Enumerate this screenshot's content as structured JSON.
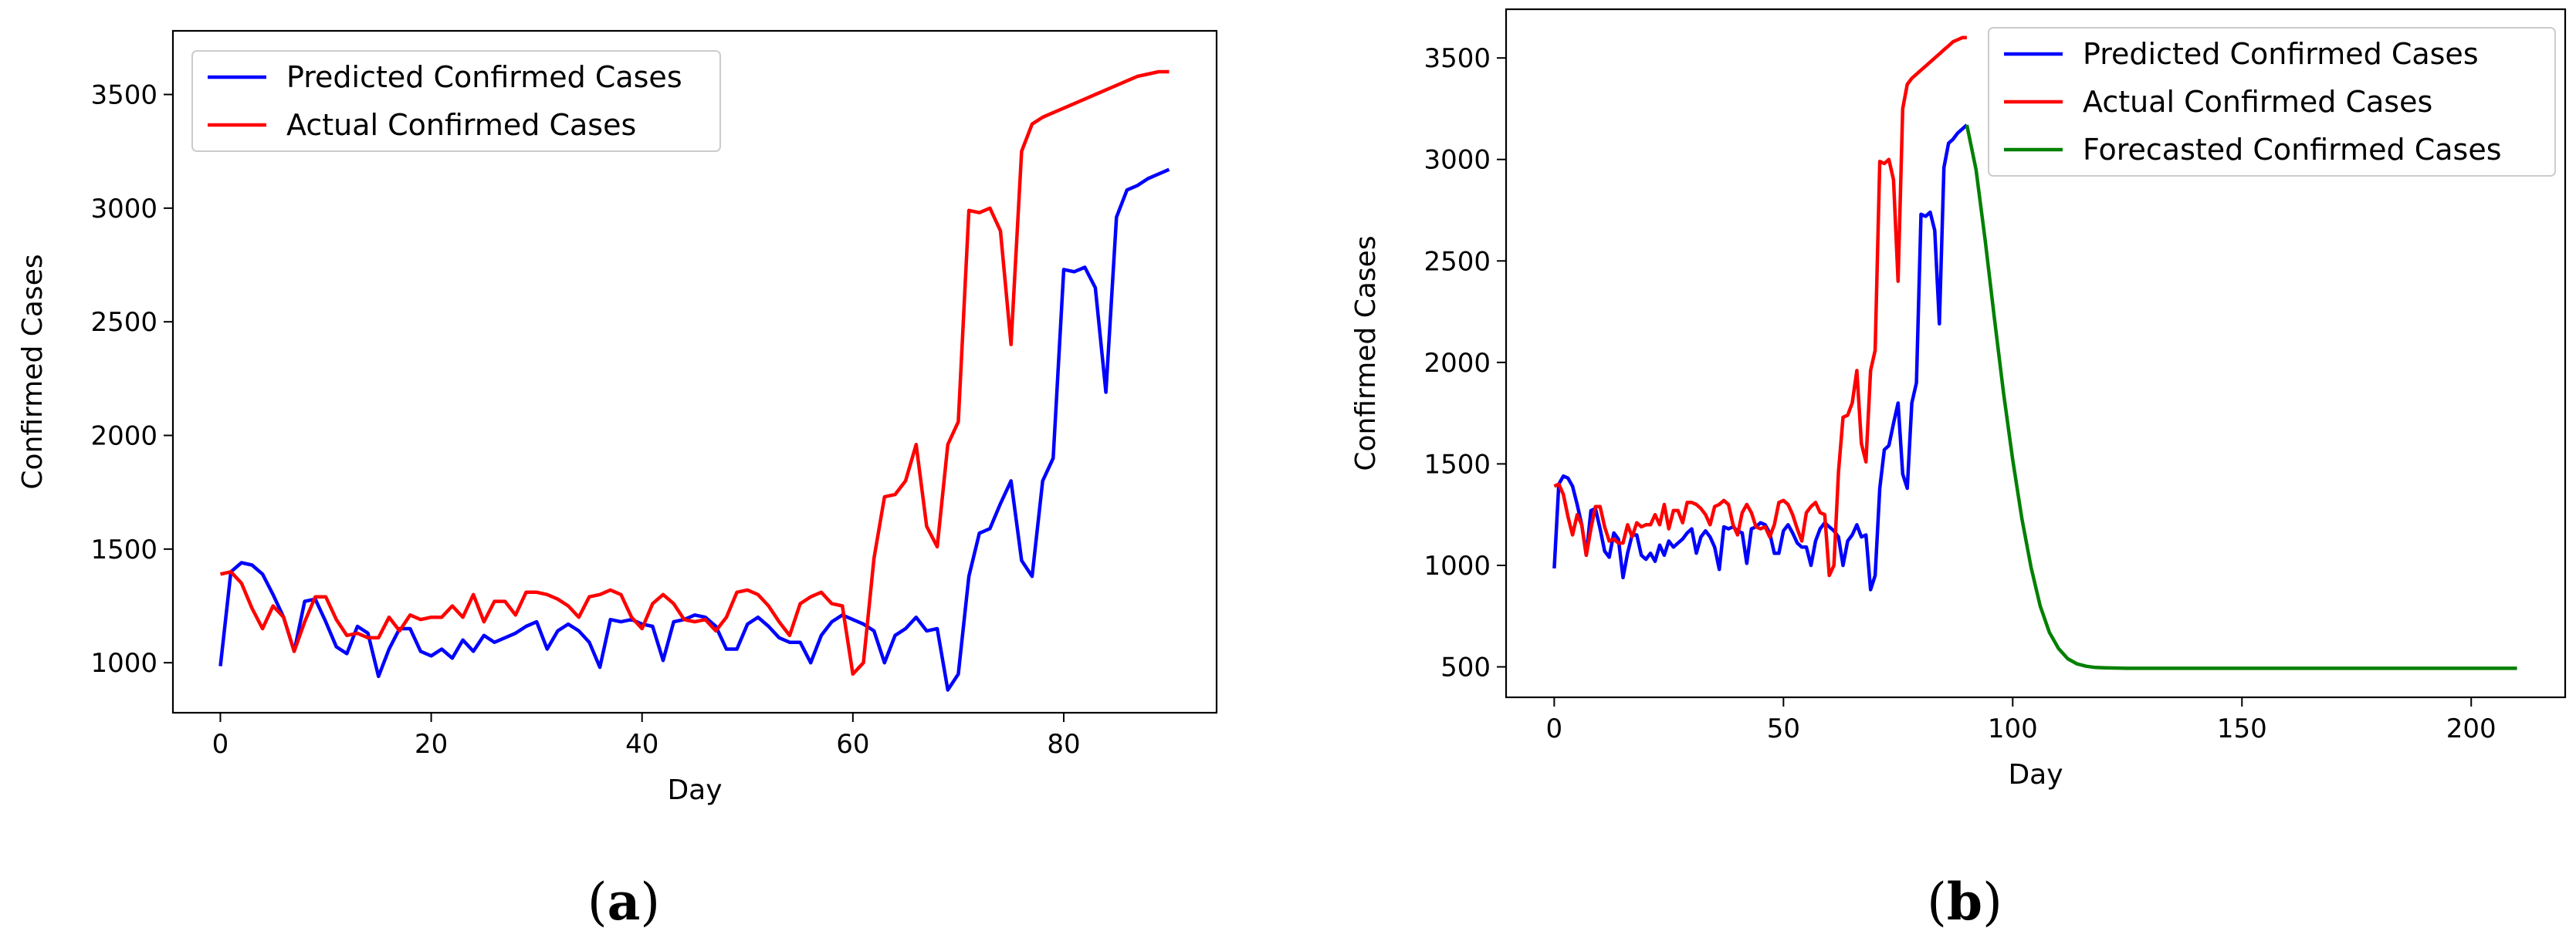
{
  "chart_data": [
    {
      "panel_label": "a",
      "type": "line",
      "xlabel": "Day",
      "ylabel": "Confirmed Cases",
      "xlim": [
        -4.5,
        94.5
      ],
      "ylim": [
        780,
        3780
      ],
      "xticks": [
        0,
        20,
        40,
        60,
        80
      ],
      "yticks": [
        1000,
        1500,
        2000,
        2500,
        3000,
        3500
      ],
      "legend_position": "upper-left",
      "series": [
        {
          "name": "Predicted Confirmed Cases",
          "color": "#0000ff",
          "x": [
            0,
            1,
            2,
            3,
            4,
            5,
            6,
            7,
            8,
            9,
            10,
            11,
            12,
            13,
            14,
            15,
            16,
            17,
            18,
            19,
            20,
            21,
            22,
            23,
            24,
            25,
            26,
            27,
            28,
            29,
            30,
            31,
            32,
            33,
            34,
            35,
            36,
            37,
            38,
            39,
            40,
            41,
            42,
            43,
            44,
            45,
            46,
            47,
            48,
            49,
            50,
            51,
            52,
            53,
            54,
            55,
            56,
            57,
            58,
            59,
            60,
            61,
            62,
            63,
            64,
            65,
            66,
            67,
            68,
            69,
            70,
            71,
            72,
            73,
            74,
            75,
            76,
            77,
            78,
            79,
            80,
            81,
            82,
            83,
            84,
            85,
            86,
            87,
            88,
            89,
            90
          ],
          "y": [
            985,
            1400,
            1440,
            1430,
            1390,
            1300,
            1200,
            1050,
            1270,
            1280,
            1180,
            1070,
            1040,
            1160,
            1130,
            940,
            1060,
            1150,
            1150,
            1050,
            1030,
            1060,
            1020,
            1100,
            1050,
            1120,
            1090,
            1110,
            1130,
            1160,
            1180,
            1060,
            1140,
            1170,
            1140,
            1090,
            980,
            1190,
            1180,
            1190,
            1170,
            1160,
            1010,
            1180,
            1190,
            1210,
            1200,
            1160,
            1060,
            1060,
            1170,
            1200,
            1160,
            1110,
            1090,
            1090,
            1000,
            1120,
            1180,
            1210,
            1190,
            1170,
            1140,
            1000,
            1120,
            1150,
            1200,
            1140,
            1150,
            880,
            950,
            1380,
            1570,
            1590,
            1700,
            1800,
            1450,
            1380,
            1800,
            1900,
            2730,
            2720,
            2740,
            2650,
            2190,
            2960,
            3080,
            3100,
            3130,
            3150,
            3170
          ]
        },
        {
          "name": "Actual Confirmed Cases",
          "color": "#ff0000",
          "x": [
            0,
            1,
            2,
            3,
            4,
            5,
            6,
            7,
            8,
            9,
            10,
            11,
            12,
            13,
            14,
            15,
            16,
            17,
            18,
            19,
            20,
            21,
            22,
            23,
            24,
            25,
            26,
            27,
            28,
            29,
            30,
            31,
            32,
            33,
            34,
            35,
            36,
            37,
            38,
            39,
            40,
            41,
            42,
            43,
            44,
            45,
            46,
            47,
            48,
            49,
            50,
            51,
            52,
            53,
            54,
            55,
            56,
            57,
            58,
            59,
            60,
            61,
            62,
            63,
            64,
            65,
            66,
            67,
            68,
            69,
            70,
            71,
            72,
            73,
            74,
            75,
            76,
            77,
            78,
            79,
            80,
            81,
            82,
            83,
            84,
            85,
            86,
            87,
            88,
            89,
            90
          ],
          "y": [
            1390,
            1400,
            1350,
            1240,
            1150,
            1250,
            1200,
            1050,
            1180,
            1290,
            1290,
            1190,
            1120,
            1130,
            1110,
            1110,
            1200,
            1140,
            1210,
            1190,
            1200,
            1200,
            1250,
            1200,
            1300,
            1180,
            1270,
            1270,
            1210,
            1310,
            1310,
            1300,
            1280,
            1250,
            1200,
            1290,
            1300,
            1320,
            1300,
            1200,
            1150,
            1260,
            1300,
            1260,
            1190,
            1180,
            1190,
            1140,
            1200,
            1310,
            1320,
            1300,
            1250,
            1180,
            1120,
            1260,
            1290,
            1310,
            1260,
            1250,
            950,
            1000,
            1460,
            1730,
            1740,
            1800,
            1960,
            1600,
            1510,
            1960,
            2060,
            2990,
            2980,
            3000,
            2900,
            2400,
            3250,
            3370,
            3400,
            3420,
            3440,
            3460,
            3480,
            3500,
            3520,
            3540,
            3560,
            3580,
            3590,
            3600,
            3600
          ]
        }
      ]
    },
    {
      "panel_label": "b",
      "type": "line",
      "xlabel": "Day",
      "ylabel": "Confirmed Cases",
      "xlim": [
        -10.5,
        220.5
      ],
      "ylim": [
        350,
        3740
      ],
      "xticks": [
        0,
        50,
        100,
        150,
        200
      ],
      "yticks": [
        500,
        1000,
        1500,
        2000,
        2500,
        3000,
        3500
      ],
      "legend_position": "upper-right",
      "series": [
        {
          "name": "Predicted Confirmed Cases",
          "color": "#0000ff",
          "x": [
            0,
            1,
            2,
            3,
            4,
            5,
            6,
            7,
            8,
            9,
            10,
            11,
            12,
            13,
            14,
            15,
            16,
            17,
            18,
            19,
            20,
            21,
            22,
            23,
            24,
            25,
            26,
            27,
            28,
            29,
            30,
            31,
            32,
            33,
            34,
            35,
            36,
            37,
            38,
            39,
            40,
            41,
            42,
            43,
            44,
            45,
            46,
            47,
            48,
            49,
            50,
            51,
            52,
            53,
            54,
            55,
            56,
            57,
            58,
            59,
            60,
            61,
            62,
            63,
            64,
            65,
            66,
            67,
            68,
            69,
            70,
            71,
            72,
            73,
            74,
            75,
            76,
            77,
            78,
            79,
            80,
            81,
            82,
            83,
            84,
            85,
            86,
            87,
            88,
            89,
            90
          ],
          "y": [
            985,
            1400,
            1440,
            1430,
            1390,
            1300,
            1200,
            1050,
            1270,
            1280,
            1180,
            1070,
            1040,
            1160,
            1130,
            940,
            1060,
            1150,
            1150,
            1050,
            1030,
            1060,
            1020,
            1100,
            1050,
            1120,
            1090,
            1110,
            1130,
            1160,
            1180,
            1060,
            1140,
            1170,
            1140,
            1090,
            980,
            1190,
            1180,
            1190,
            1170,
            1160,
            1010,
            1180,
            1190,
            1210,
            1200,
            1160,
            1060,
            1060,
            1170,
            1200,
            1160,
            1110,
            1090,
            1090,
            1000,
            1120,
            1180,
            1210,
            1190,
            1170,
            1140,
            1000,
            1120,
            1150,
            1200,
            1140,
            1150,
            880,
            950,
            1380,
            1570,
            1590,
            1700,
            1800,
            1450,
            1380,
            1800,
            1900,
            2730,
            2720,
            2740,
            2650,
            2190,
            2960,
            3080,
            3100,
            3130,
            3150,
            3170
          ]
        },
        {
          "name": "Actual Confirmed Cases",
          "color": "#ff0000",
          "x": [
            0,
            1,
            2,
            3,
            4,
            5,
            6,
            7,
            8,
            9,
            10,
            11,
            12,
            13,
            14,
            15,
            16,
            17,
            18,
            19,
            20,
            21,
            22,
            23,
            24,
            25,
            26,
            27,
            28,
            29,
            30,
            31,
            32,
            33,
            34,
            35,
            36,
            37,
            38,
            39,
            40,
            41,
            42,
            43,
            44,
            45,
            46,
            47,
            48,
            49,
            50,
            51,
            52,
            53,
            54,
            55,
            56,
            57,
            58,
            59,
            60,
            61,
            62,
            63,
            64,
            65,
            66,
            67,
            68,
            69,
            70,
            71,
            72,
            73,
            74,
            75,
            76,
            77,
            78,
            79,
            80,
            81,
            82,
            83,
            84,
            85,
            86,
            87,
            88,
            89,
            90
          ],
          "y": [
            1390,
            1400,
            1350,
            1240,
            1150,
            1250,
            1200,
            1050,
            1180,
            1290,
            1290,
            1190,
            1120,
            1130,
            1110,
            1110,
            1200,
            1140,
            1210,
            1190,
            1200,
            1200,
            1250,
            1200,
            1300,
            1180,
            1270,
            1270,
            1210,
            1310,
            1310,
            1300,
            1280,
            1250,
            1200,
            1290,
            1300,
            1320,
            1300,
            1200,
            1150,
            1260,
            1300,
            1260,
            1190,
            1180,
            1190,
            1140,
            1200,
            1310,
            1320,
            1300,
            1250,
            1180,
            1120,
            1260,
            1290,
            1310,
            1260,
            1250,
            950,
            1000,
            1460,
            1730,
            1740,
            1800,
            1960,
            1600,
            1510,
            1960,
            2060,
            2990,
            2980,
            3000,
            2900,
            2400,
            3250,
            3370,
            3400,
            3420,
            3440,
            3460,
            3480,
            3500,
            3520,
            3540,
            3560,
            3580,
            3590,
            3600,
            3600
          ]
        },
        {
          "name": "Forecasted Confirmed Cases",
          "color": "#008000",
          "x": [
            90,
            92,
            94,
            96,
            98,
            100,
            102,
            104,
            106,
            108,
            110,
            112,
            114,
            116,
            118,
            120,
            125,
            130,
            140,
            150,
            160,
            170,
            180,
            190,
            200,
            210
          ],
          "y": [
            3170,
            2950,
            2600,
            2220,
            1850,
            1520,
            1230,
            990,
            800,
            670,
            590,
            540,
            515,
            503,
            497,
            495,
            493,
            493,
            493,
            493,
            493,
            493,
            493,
            493,
            493,
            493
          ]
        }
      ]
    }
  ]
}
